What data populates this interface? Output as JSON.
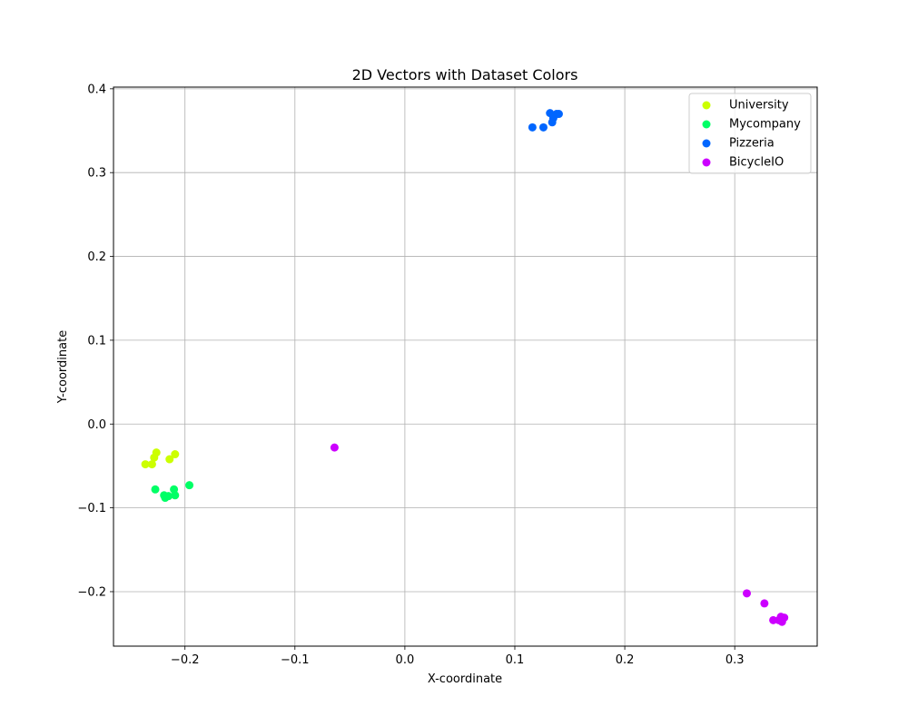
{
  "chart_data": {
    "type": "scatter",
    "title": "2D Vectors with Dataset Colors",
    "xlabel": "X-coordinate",
    "ylabel": "Y-coordinate",
    "xlim": [
      -0.265,
      0.375
    ],
    "ylim": [
      -0.265,
      0.402
    ],
    "x_ticks": [
      -0.2,
      -0.1,
      0.0,
      0.1,
      0.2,
      0.3
    ],
    "x_tick_labels": [
      "−0.2",
      "−0.1",
      "0.0",
      "0.1",
      "0.2",
      "0.3"
    ],
    "y_ticks": [
      -0.2,
      -0.1,
      0.0,
      0.1,
      0.2,
      0.3,
      0.4
    ],
    "y_tick_labels": [
      "−0.2",
      "−0.1",
      "0.0",
      "0.1",
      "0.2",
      "0.3",
      "0.4"
    ],
    "grid": true,
    "legend_position": "top-right",
    "series": [
      {
        "name": "University",
        "color": "#ccff00",
        "points": [
          [
            -0.236,
            -0.048
          ],
          [
            -0.23,
            -0.048
          ],
          [
            -0.228,
            -0.04
          ],
          [
            -0.226,
            -0.034
          ],
          [
            -0.214,
            -0.042
          ],
          [
            -0.209,
            -0.036
          ]
        ]
      },
      {
        "name": "Mycompany",
        "color": "#00ff66",
        "points": [
          [
            -0.227,
            -0.078
          ],
          [
            -0.219,
            -0.085
          ],
          [
            -0.218,
            -0.088
          ],
          [
            -0.215,
            -0.086
          ],
          [
            -0.21,
            -0.078
          ],
          [
            -0.209,
            -0.085
          ],
          [
            -0.196,
            -0.073
          ]
        ]
      },
      {
        "name": "Pizzeria",
        "color": "#0066ff",
        "points": [
          [
            0.116,
            0.354
          ],
          [
            0.126,
            0.354
          ],
          [
            0.132,
            0.371
          ],
          [
            0.135,
            0.365
          ],
          [
            0.134,
            0.36
          ],
          [
            0.138,
            0.37
          ],
          [
            0.14,
            0.37
          ]
        ]
      },
      {
        "name": "BicycleIO",
        "color": "#cc00ff",
        "points": [
          [
            -0.064,
            -0.028
          ],
          [
            0.311,
            -0.202
          ],
          [
            0.327,
            -0.214
          ],
          [
            0.335,
            -0.234
          ],
          [
            0.34,
            -0.234
          ],
          [
            0.342,
            -0.23
          ],
          [
            0.343,
            -0.236
          ],
          [
            0.345,
            -0.231
          ]
        ]
      }
    ]
  }
}
